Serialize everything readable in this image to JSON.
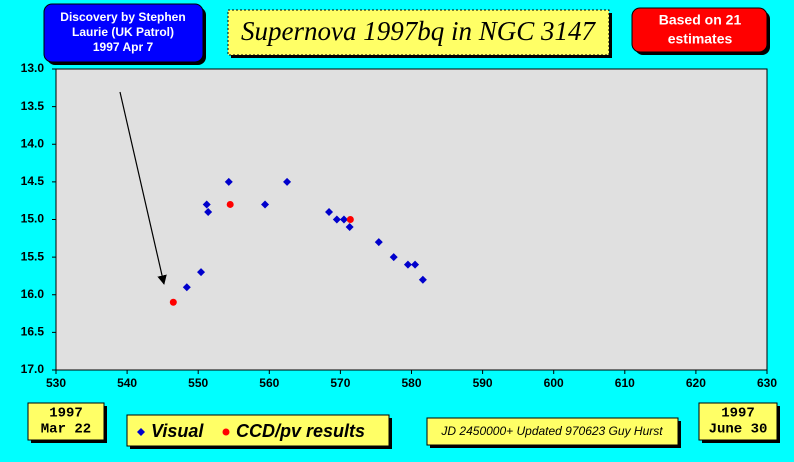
{
  "chart_data": {
    "type": "scatter",
    "title": "Supernova 1997bq in NGC 3147",
    "discovery_note": [
      "Discovery by Stephen",
      "Laurie (UK Patrol)",
      "1997 Apr 7"
    ],
    "estimates_note": [
      "Based on 21",
      "estimates"
    ],
    "start_date": [
      "1997",
      "Mar 22"
    ],
    "end_date": [
      "1997",
      "June 30"
    ],
    "footnote": "JD 2450000+ Updated 970623 Guy Hurst",
    "xlim": [
      530,
      630
    ],
    "xticks": [
      530,
      540,
      550,
      560,
      570,
      580,
      590,
      600,
      610,
      620,
      630
    ],
    "ylim": [
      13,
      17
    ],
    "y_inverted": true,
    "yticks": [
      {
        "value": 13,
        "label": "13.0"
      },
      {
        "value": 13.5,
        "label": "13.5"
      },
      {
        "value": 14,
        "label": "14.0"
      },
      {
        "value": 14.5,
        "label": "14.5"
      },
      {
        "value": 15,
        "label": "15.0"
      },
      {
        "value": 15.5,
        "label": "15.5"
      },
      {
        "value": 16,
        "label": "16.0"
      },
      {
        "value": 16.5,
        "label": "16.5"
      },
      {
        "value": 17,
        "label": "17.0"
      }
    ],
    "series": [
      {
        "name": "Visual",
        "color": "#0000cc",
        "marker": "diamond",
        "x": [
          548.4,
          550.4,
          551.2,
          551.4,
          554.3,
          559.4,
          562.5,
          568.4,
          569.5,
          570.5,
          571.3,
          575.4,
          577.5,
          579.5,
          580.5,
          581.6
        ],
        "values": [
          15.9,
          15.7,
          14.8,
          14.9,
          14.5,
          14.8,
          14.5,
          14.9,
          15.0,
          15.0,
          15.1,
          15.3,
          15.5,
          15.6,
          15.6,
          15.8
        ]
      },
      {
        "name": "CCD/pv results",
        "color": "#ff0000",
        "marker": "circle",
        "x": [
          546.5,
          554.5,
          571.4
        ],
        "values": [
          16.1,
          14.8,
          15.0
        ]
      }
    ]
  }
}
